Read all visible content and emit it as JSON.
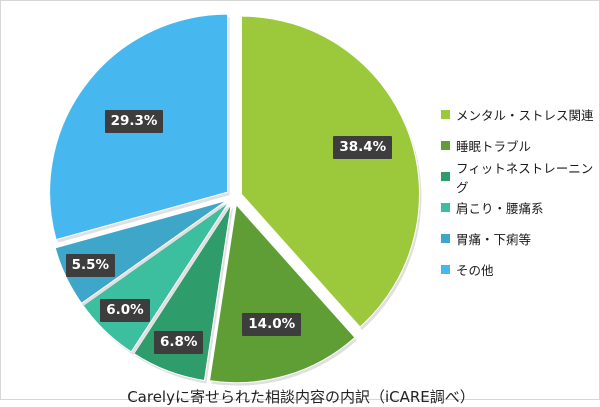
{
  "chart_data": {
    "type": "pie",
    "title": "Carelyに寄せられた相談内容の内訳（iCARE調べ）",
    "categories": [
      "メンタル・ストレス関連",
      "睡眠トラブル",
      "フィットネストレーニング",
      "肩こり・腰痛系",
      "胃痛・下痢等",
      "その他"
    ],
    "values": [
      38.4,
      14.0,
      6.8,
      6.0,
      5.5,
      29.3
    ],
    "labels": [
      "38.4%",
      "14.0%",
      "6.8%",
      "6.0%",
      "5.5%",
      "29.3%"
    ],
    "colors": [
      "#9cc93b",
      "#5e9e34",
      "#2e9c6b",
      "#3bbf9f",
      "#3ea6c8",
      "#47b8ef"
    ],
    "legend": "right"
  }
}
